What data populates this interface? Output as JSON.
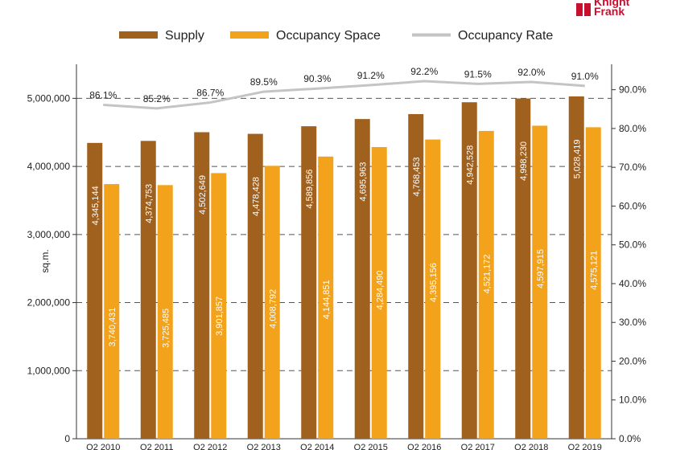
{
  "logo": {
    "line1": "Knight",
    "line2": "Frank",
    "color": "#c8102e"
  },
  "chart_data": {
    "type": "bar",
    "categories": [
      "Q2 2010",
      "Q2 2011",
      "Q2 2012",
      "Q2 2013",
      "Q2 2014",
      "Q2 2015",
      "Q2 2016",
      "Q2 2017",
      "Q2 2018",
      "Q2 2019"
    ],
    "series": [
      {
        "name": "Supply",
        "type": "bar",
        "axis": "left",
        "color": "#a0611f",
        "values": [
          4345144,
          4374753,
          4502649,
          4478428,
          4589856,
          4695963,
          4768453,
          4942528,
          4998230,
          5028419
        ],
        "labels": [
          "4,345,144",
          "4,374,753",
          "4,502,649",
          "4,478,428",
          "4,589,856",
          "4,695,963",
          "4,768,453",
          "4,942,528",
          "4,998,230",
          "5,028,419"
        ]
      },
      {
        "name": "Occupancy Space",
        "type": "bar",
        "axis": "left",
        "color": "#f3a21b",
        "values": [
          3740431,
          3725485,
          3901857,
          4008792,
          4144851,
          4284490,
          4395156,
          4521172,
          4597915,
          4575121
        ],
        "labels": [
          "3,740,431",
          "3,725,485",
          "3,901,857",
          "4,008,792",
          "4,144,851",
          "4,284,490",
          "4,395,156",
          "4,521,172",
          "4,597,915",
          "4,575,121"
        ]
      },
      {
        "name": "Occupancy Rate",
        "type": "line",
        "axis": "right",
        "color": "#c4c4c4",
        "values": [
          86.1,
          85.2,
          86.7,
          89.5,
          90.3,
          91.2,
          92.2,
          91.5,
          92.0,
          91.0
        ],
        "labels": [
          "86.1%",
          "85.2%",
          "86.7%",
          "89.5%",
          "90.3%",
          "91.2%",
          "92.2%",
          "91.5%",
          "92.0%",
          "91.0%"
        ]
      }
    ],
    "ylabel": "sq.m.",
    "ylim": [
      0,
      5500000
    ],
    "y_ticks": [
      0,
      1000000,
      2000000,
      3000000,
      4000000,
      5000000
    ],
    "y_tick_labels": [
      "0",
      "1,000,000",
      "2,000,000",
      "3,000,000",
      "4,000,000",
      "5,000,000"
    ],
    "y2lim": [
      0,
      92
    ],
    "y2_ticks": [
      0,
      10,
      20,
      30,
      40,
      50,
      60,
      70,
      80,
      90
    ],
    "y2_tick_labels": [
      "0.0%",
      "10.0%",
      "20.0%",
      "30.0%",
      "40.0%",
      "50.0%",
      "60.0%",
      "70.0%",
      "80.0%",
      "90.0%"
    ],
    "grid": "horizontal dashed",
    "legend_position": "top"
  }
}
